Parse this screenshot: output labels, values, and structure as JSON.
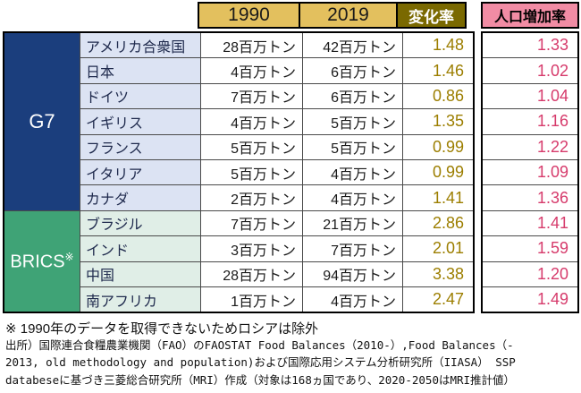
{
  "chart_data": {
    "type": "table",
    "column_headers": {
      "y1990": "1990",
      "y2019": "2019",
      "change": "変化率",
      "pop_growth": "人口増加率"
    },
    "groups": [
      {
        "label": "G7",
        "sup": "",
        "row_count": 7
      },
      {
        "label": "BRICS",
        "sup": "※",
        "row_count": 4
      }
    ],
    "rows": [
      {
        "group": "G7",
        "country": "アメリカ合衆国",
        "y1990": "28百万トン",
        "y2019": "42百万トン",
        "change": "1.48",
        "pop_growth": "1.33"
      },
      {
        "group": "G7",
        "country": "日本",
        "y1990": "4百万トン",
        "y2019": "6百万トン",
        "change": "1.46",
        "pop_growth": "1.02"
      },
      {
        "group": "G7",
        "country": "ドイツ",
        "y1990": "7百万トン",
        "y2019": "6百万トン",
        "change": "0.86",
        "pop_growth": "1.04"
      },
      {
        "group": "G7",
        "country": "イギリス",
        "y1990": "4百万トン",
        "y2019": "5百万トン",
        "change": "1.35",
        "pop_growth": "1.16"
      },
      {
        "group": "G7",
        "country": "フランス",
        "y1990": "5百万トン",
        "y2019": "5百万トン",
        "change": "0.99",
        "pop_growth": "1.22"
      },
      {
        "group": "G7",
        "country": "イタリア",
        "y1990": "5百万トン",
        "y2019": "4百万トン",
        "change": "0.99",
        "pop_growth": "1.09"
      },
      {
        "group": "G7",
        "country": "カナダ",
        "y1990": "2百万トン",
        "y2019": "4百万トン",
        "change": "1.41",
        "pop_growth": "1.36"
      },
      {
        "group": "BRICS",
        "country": "ブラジル",
        "y1990": "7百万トン",
        "y2019": "21百万トン",
        "change": "2.86",
        "pop_growth": "1.41"
      },
      {
        "group": "BRICS",
        "country": "インド",
        "y1990": "3百万トン",
        "y2019": "7百万トン",
        "change": "2.01",
        "pop_growth": "1.59"
      },
      {
        "group": "BRICS",
        "country": "中国",
        "y1990": "28百万トン",
        "y2019": "94百万トン",
        "change": "3.38",
        "pop_growth": "1.20"
      },
      {
        "group": "BRICS",
        "country": "南アフリカ",
        "y1990": "1百万トン",
        "y2019": "4百万トン",
        "change": "2.47",
        "pop_growth": "1.49"
      }
    ],
    "colors": {
      "year_header_bg": "#E3C05E",
      "change_header_bg": "#7A6900",
      "pop_header_bg": "#F18CA4",
      "g7_group_bg": "#1B3E7D",
      "brics_group_bg": "#3FA376",
      "g7_country_bg": "#DCE3F3",
      "brics_country_bg": "#E0EEE7",
      "change_value_color": "#9C7E00",
      "pop_value_color": "#D63A6B"
    }
  },
  "footnote": "※ 1990年のデータを取得できないためロシアは除外",
  "source_lines": [
    "出所）国際連合食糧農業機関（FAO）のFAOSTAT Food Balances（2010-）,Food Balances（-",
    "2013, old methodology and population)および国際応用システム分析研究所（IIASA） SSP",
    "databeseに基づき三菱総合研究所（MRI）作成（対象は168ヵ国であり、2020-2050はMRI推計値）"
  ]
}
